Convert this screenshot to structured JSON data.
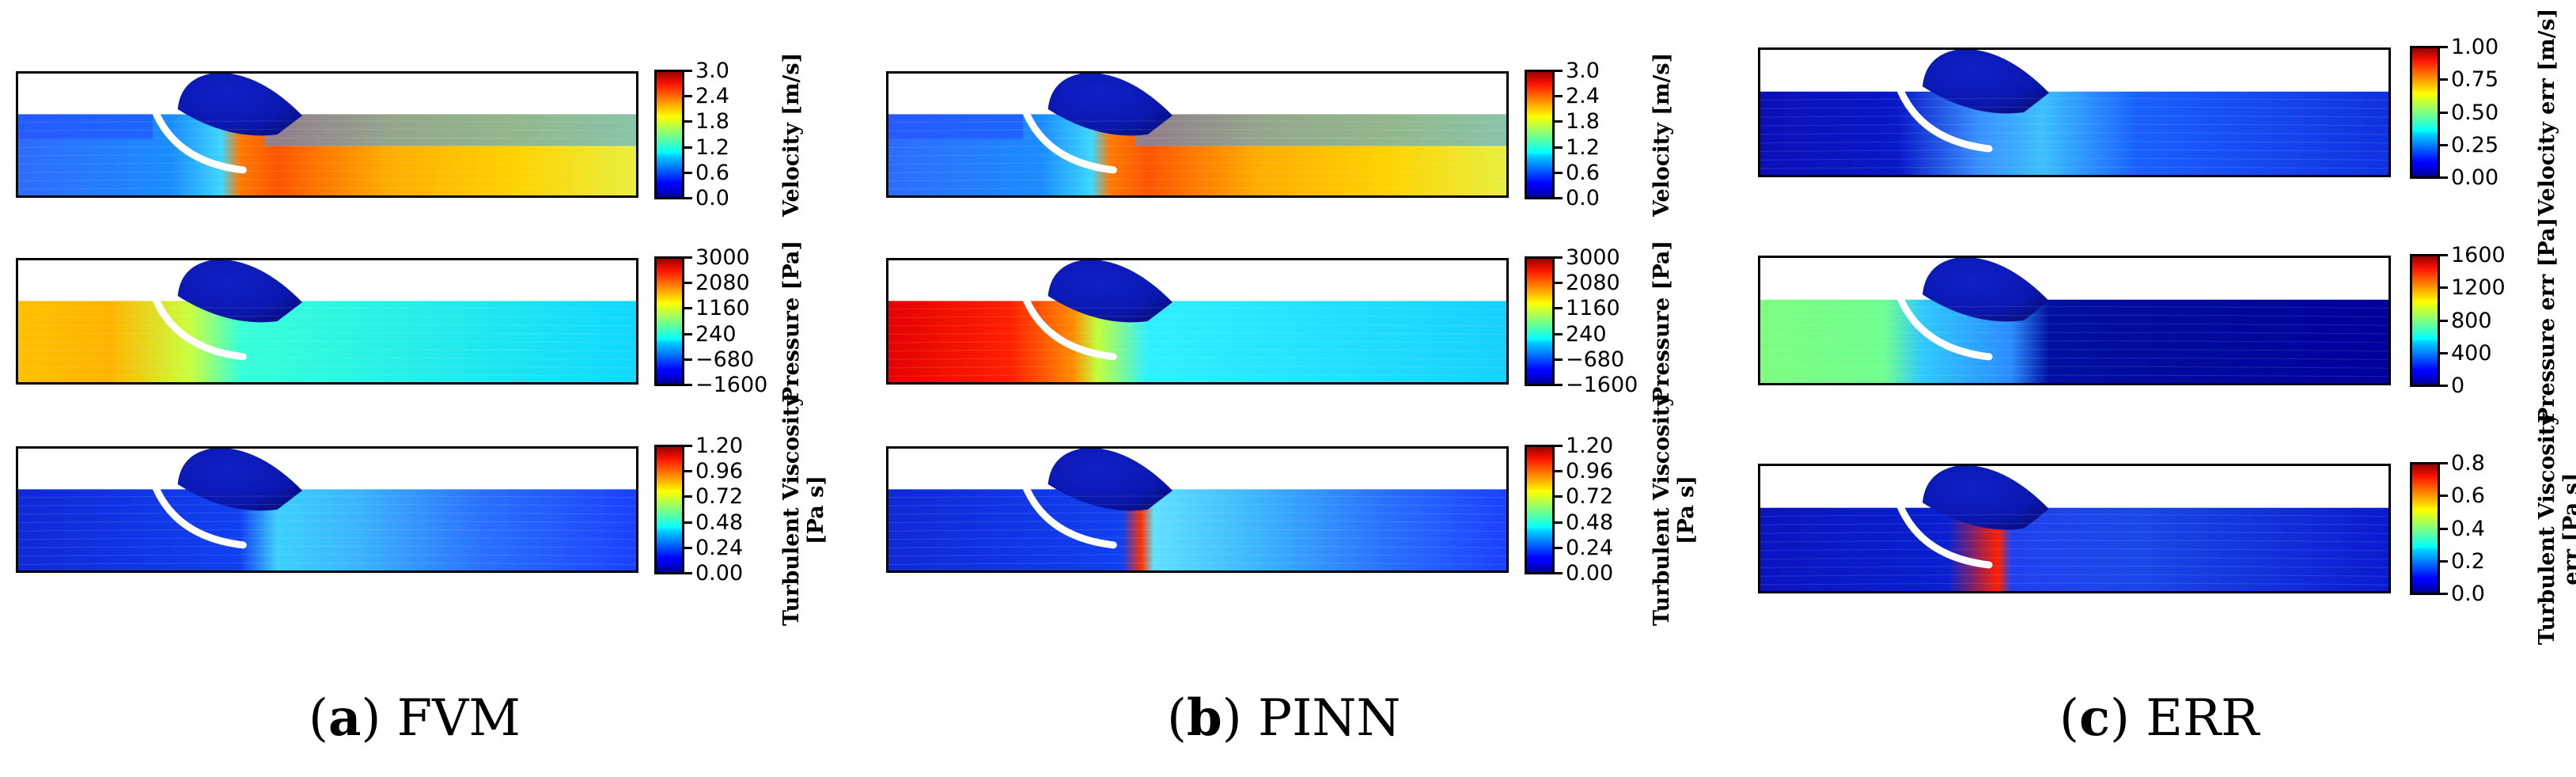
{
  "columns": [
    {
      "id": "fvm",
      "caption": {
        "letter": "a",
        "name": "FVM"
      },
      "rows": [
        {
          "field": "velocity",
          "label": "Velocity [m/s]",
          "ticks": [
            "3.0",
            "2.4",
            "1.8",
            "1.2",
            "0.6",
            "0.0"
          ],
          "style": "velocity"
        },
        {
          "field": "pressure",
          "label": "Pressure [Pa]",
          "ticks": [
            "3000",
            "2080",
            "1160",
            "240",
            "−680",
            "−1600"
          ],
          "style": "pressure-fvm"
        },
        {
          "field": "turbulent-viscosity",
          "label_lines": [
            "Turbulent Viscosity",
            "[Pa s]"
          ],
          "ticks": [
            "1.20",
            "0.96",
            "0.72",
            "0.48",
            "0.24",
            "0.00"
          ],
          "style": "nut-fvm"
        }
      ]
    },
    {
      "id": "pinn",
      "caption": {
        "letter": "b",
        "name": "PINN"
      },
      "rows": [
        {
          "field": "velocity",
          "label": "Velocity [m/s]",
          "ticks": [
            "3.0",
            "2.4",
            "1.8",
            "1.2",
            "0.6",
            "0.0"
          ],
          "style": "velocity"
        },
        {
          "field": "pressure",
          "label": "Pressure [Pa]",
          "ticks": [
            "3000",
            "2080",
            "1160",
            "240",
            "−680",
            "−1600"
          ],
          "style": "pressure-pinn"
        },
        {
          "field": "turbulent-viscosity",
          "label_lines": [
            "Turbulent Viscosity",
            "[Pa s]"
          ],
          "ticks": [
            "1.20",
            "0.96",
            "0.72",
            "0.48",
            "0.24",
            "0.00"
          ],
          "style": "nut-pinn"
        }
      ]
    },
    {
      "id": "err",
      "caption": {
        "letter": "c",
        "name": "ERR"
      },
      "rows": [
        {
          "field": "velocity-err",
          "label": "Velocity err [m/s]",
          "ticks": [
            "1.00",
            "0.75",
            "0.50",
            "0.25",
            "0.00"
          ],
          "style": "vel-err"
        },
        {
          "field": "pressure-err",
          "label": "Pressure err [Pa]",
          "ticks": [
            "1600",
            "1200",
            "800",
            "400",
            "0"
          ],
          "style": "p-err"
        },
        {
          "field": "turbulent-viscosity-err",
          "label_lines": [
            "Turbulent Viscosity",
            "err [Pa s]"
          ],
          "ticks": [
            "0.8",
            "0.6",
            "0.4",
            "0.2",
            "0.0"
          ],
          "style": "nut-err"
        }
      ]
    }
  ],
  "colormap": "jet"
}
